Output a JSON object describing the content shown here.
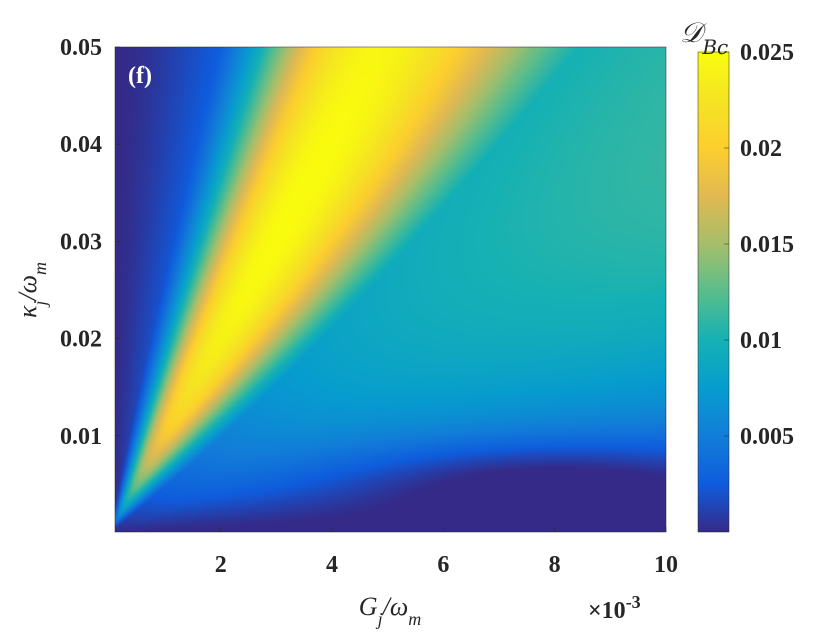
{
  "chart_data": {
    "type": "heatmap",
    "panel_label": "(f)",
    "xlabel": "G_j/ω_m",
    "ylabel": "κ_j/ω_m",
    "x_exponent_label": "×10",
    "x_exponent": "-3",
    "colorbar_label": "D_Bc",
    "xlim": [
      0.0001,
      0.01
    ],
    "ylim": [
      0.0001,
      0.05
    ],
    "clim": [
      0,
      0.025
    ],
    "x_ticks": [
      0.002,
      0.004,
      0.006,
      0.008,
      0.01
    ],
    "x_tick_labels": [
      "2",
      "4",
      "6",
      "8",
      "10"
    ],
    "y_ticks": [
      0.01,
      0.02,
      0.03,
      0.04,
      0.05
    ],
    "y_tick_labels": [
      "0.01",
      "0.02",
      "0.03",
      "0.04",
      "0.05"
    ],
    "colorbar_ticks": [
      0.005,
      0.01,
      0.015,
      0.02,
      0.025
    ],
    "colorbar_tick_labels": [
      "0.005",
      "0.01",
      "0.015",
      "0.02",
      "0.025"
    ],
    "colormap": "parula",
    "peak": {
      "x": 0.0032,
      "y": 0.045,
      "value": 0.025
    },
    "ridge": "peak values lie near κ_j/ω_m ≈ 10·G_j/ω_m (wedge between slopes ~4 and ~24)"
  }
}
